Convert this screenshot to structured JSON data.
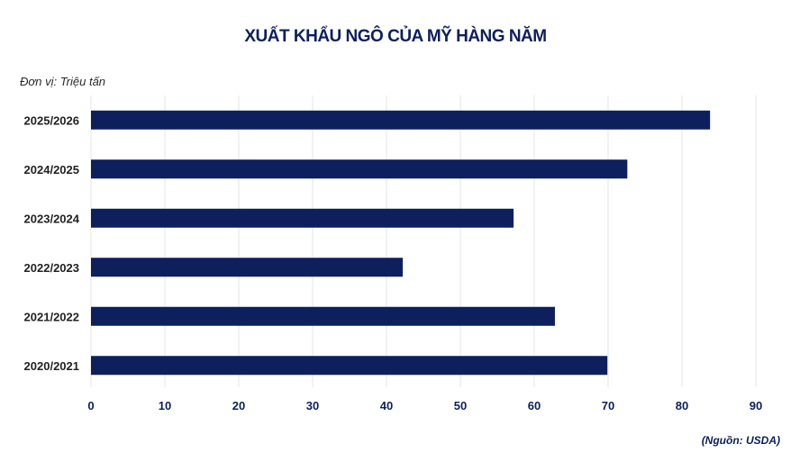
{
  "chart_data": {
    "type": "bar",
    "orientation": "horizontal",
    "title": "XUẤT KHẨU NGÔ CỦA MỸ HÀNG NĂM",
    "unit_label": "Đơn vị: Triệu tấn",
    "source": "(Nguồn: USDA)",
    "categories": [
      "2025/2026",
      "2024/2025",
      "2023/2024",
      "2022/2023",
      "2021/2022",
      "2020/2021"
    ],
    "values": [
      83.8,
      72.6,
      57.2,
      42.2,
      62.8,
      69.9
    ],
    "xlim": [
      0,
      90
    ],
    "xticks": [
      0,
      10,
      20,
      30,
      40,
      50,
      60,
      70,
      80,
      90
    ],
    "grid": "vertical",
    "legend": "none",
    "bar_color": "#0d1f5c",
    "grid_color": "#e6e6e6"
  }
}
